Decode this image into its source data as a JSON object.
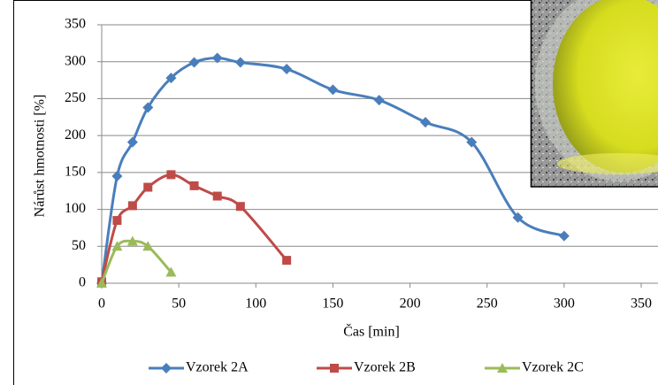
{
  "chart_data": {
    "type": "line",
    "x_label": "Čas [min]",
    "y_label": "Nárůst hmotnosti [%]",
    "xlim": [
      0,
      350
    ],
    "xticks": [
      0,
      50,
      100,
      150,
      200,
      250,
      300,
      350
    ],
    "ylim": [
      0,
      350
    ],
    "yticks": [
      0,
      50,
      100,
      150,
      200,
      250,
      300,
      350
    ],
    "grid": true,
    "legend": "bottom",
    "series": [
      {
        "name": "Vzorek 2A",
        "color": "#4a7ebb",
        "marker": "diamond",
        "x": [
          0,
          10,
          20,
          30,
          45,
          60,
          75,
          90,
          120,
          150,
          180,
          210,
          240,
          270,
          300
        ],
        "values": [
          0,
          145,
          191,
          238,
          278,
          299,
          305,
          299,
          290,
          262,
          248,
          218,
          191,
          89,
          64
        ]
      },
      {
        "name": "Vzorek 2B",
        "color": "#be4b48",
        "marker": "square",
        "x": [
          0,
          10,
          20,
          30,
          45,
          60,
          75,
          90,
          120
        ],
        "values": [
          2,
          85,
          105,
          130,
          147,
          132,
          118,
          104,
          31
        ]
      },
      {
        "name": "Vzorek 2C",
        "color": "#9bbb59",
        "marker": "triangle",
        "x": [
          0,
          10,
          20,
          30,
          45
        ],
        "values": [
          0,
          50,
          57,
          50,
          15
        ]
      }
    ]
  }
}
